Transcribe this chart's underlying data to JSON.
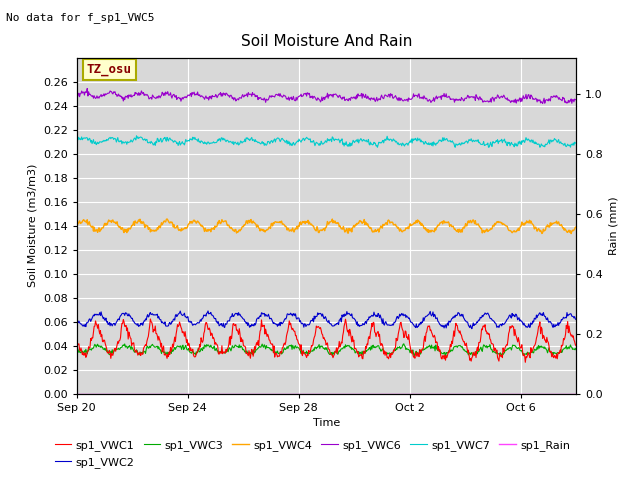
{
  "title": "Soil Moisture And Rain",
  "top_left_note": "No data for f_sp1_VWC5",
  "legend_label": "TZ_osu",
  "ylabel_left": "Soil Moisture (m3/m3)",
  "ylabel_right": "Rain (mm)",
  "xlabel": "Time",
  "ylim_left": [
    0.0,
    0.28
  ],
  "ylim_right": [
    0.0,
    1.12
  ],
  "yticks_left": [
    0.0,
    0.02,
    0.04,
    0.06,
    0.08,
    0.1,
    0.12,
    0.14,
    0.16,
    0.18,
    0.2,
    0.22,
    0.24,
    0.26
  ],
  "yticks_right": [
    0.0,
    0.2,
    0.4,
    0.6,
    0.8,
    1.0
  ],
  "background_color": "#d8d8d8",
  "plot_bg": "#e8e8e8",
  "x_tick_labels": [
    "Sep 20",
    "Sep 24",
    "Sep 28",
    "Oct 2",
    "Oct 6"
  ],
  "x_tick_positions": [
    0,
    4,
    8,
    12,
    16
  ],
  "n_days": 18,
  "n_points": 720,
  "series_order": [
    "sp1_VWC1",
    "sp1_VWC2",
    "sp1_VWC3",
    "sp1_VWC4",
    "sp1_VWC6",
    "sp1_VWC7",
    "sp1_Rain"
  ],
  "series": {
    "sp1_VWC1": {
      "color": "#ff0000",
      "base": 0.043,
      "amplitude": 0.01,
      "noise_std": 0.002,
      "trend": -0.003,
      "phase": 3.14
    },
    "sp1_VWC2": {
      "color": "#0000cc",
      "base": 0.062,
      "amplitude": 0.005,
      "noise_std": 0.001,
      "trend": -0.001,
      "phase": 3.14
    },
    "sp1_VWC3": {
      "color": "#00aa00",
      "base": 0.037,
      "amplitude": 0.003,
      "noise_std": 0.001,
      "trend": -0.001,
      "phase": 3.14
    },
    "sp1_VWC4": {
      "color": "#ffa500",
      "base": 0.14,
      "amplitude": 0.004,
      "noise_std": 0.001,
      "trend": -0.001,
      "phase": 0.0
    },
    "sp1_VWC6": {
      "color": "#9900cc",
      "base": 0.249,
      "amplitude": 0.002,
      "noise_std": 0.001,
      "trend": -0.004,
      "phase": 0.0
    },
    "sp1_VWC7": {
      "color": "#00cccc",
      "base": 0.211,
      "amplitude": 0.002,
      "noise_std": 0.001,
      "trend": -0.002,
      "phase": 0.0
    },
    "sp1_Rain": {
      "color": "#ff44ff",
      "base": 0.0,
      "amplitude": 0.0,
      "noise_std": 0.0,
      "trend": 0.0,
      "phase": 0.0
    }
  }
}
